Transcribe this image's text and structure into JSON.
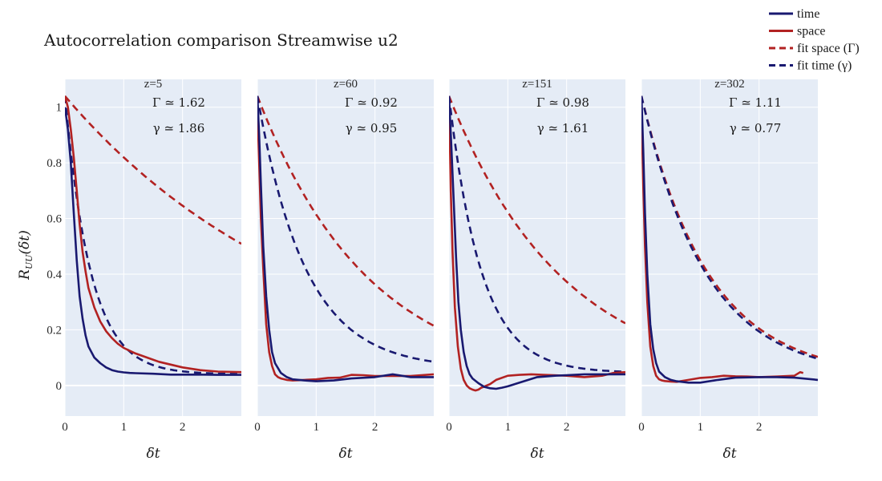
{
  "chart_data": {
    "type": "line",
    "title": "Autocorrelation comparison Streamwise u2",
    "xlabel": "δt",
    "ylabel": "R_{UU}(δt)",
    "xlim": [
      0,
      3
    ],
    "ylim": [
      -0.11,
      1.1
    ],
    "x_ticks": [
      0,
      1,
      2
    ],
    "y_ticks": [
      0,
      0.2,
      0.4,
      0.6,
      0.8,
      1
    ],
    "y_tick_labels": [
      "0",
      "0.2",
      "0.4",
      "0.6",
      "0.8",
      "1"
    ],
    "grid": true,
    "legend_position": "top-right",
    "colors": {
      "time": "#191970",
      "space": "#b22222",
      "plot_bg": "#e5ecf6"
    },
    "legend": [
      {
        "key": "time",
        "label": "time",
        "dash": false
      },
      {
        "key": "space",
        "label": "space",
        "dash": false
      },
      {
        "key": "fit_space",
        "label": "fit space (Γ)",
        "dash": true,
        "color": "space"
      },
      {
        "key": "fit_time",
        "label": "fit time (γ)",
        "dash": true,
        "color": "time"
      }
    ],
    "panels": [
      {
        "subtitle": "z=5",
        "gamma_upper_label": "Γ ≃ 1.62",
        "gamma_lower_label": "γ ≃ 1.86",
        "fit_space": {
          "a": 1.04,
          "tau": 4.2
        },
        "fit_time": {
          "a": 1.04,
          "tau": 0.44,
          "c": 0.04
        },
        "time": {
          "x": [
            0,
            0.05,
            0.1,
            0.15,
            0.2,
            0.25,
            0.3,
            0.35,
            0.4,
            0.5,
            0.6,
            0.7,
            0.8,
            0.9,
            1.0,
            1.1,
            1.2,
            1.5,
            1.8,
            2.0,
            2.3,
            2.6,
            2.8,
            3.0
          ],
          "y": [
            1.0,
            0.92,
            0.8,
            0.62,
            0.45,
            0.32,
            0.24,
            0.18,
            0.14,
            0.1,
            0.08,
            0.065,
            0.055,
            0.05,
            0.047,
            0.045,
            0.044,
            0.042,
            0.039,
            0.039,
            0.039,
            0.038,
            0.038,
            0.038
          ]
        },
        "space": {
          "x": [
            0,
            0.05,
            0.1,
            0.15,
            0.2,
            0.25,
            0.3,
            0.35,
            0.4,
            0.5,
            0.6,
            0.7,
            0.8,
            0.9,
            1.0,
            1.2,
            1.4,
            1.6,
            1.8,
            2.0,
            2.3,
            2.6,
            3.0
          ],
          "y": [
            1.04,
            1.0,
            0.92,
            0.82,
            0.7,
            0.58,
            0.48,
            0.41,
            0.35,
            0.28,
            0.23,
            0.195,
            0.17,
            0.15,
            0.135,
            0.115,
            0.1,
            0.085,
            0.075,
            0.065,
            0.055,
            0.05,
            0.048
          ]
        }
      },
      {
        "subtitle": "z=60",
        "gamma_upper_label": "Γ ≃ 0.92",
        "gamma_lower_label": "γ ≃ 0.95",
        "fit_space": {
          "a": 1.04,
          "tau": 1.9
        },
        "fit_time": {
          "a": 1.04,
          "tau": 0.82,
          "c": 0.06
        },
        "time": {
          "x": [
            0,
            0.03,
            0.06,
            0.1,
            0.15,
            0.2,
            0.25,
            0.3,
            0.4,
            0.5,
            0.6,
            0.8,
            1.0,
            1.3,
            1.6,
            2.0,
            2.3,
            2.6,
            3.0
          ],
          "y": [
            1.04,
            0.9,
            0.72,
            0.5,
            0.32,
            0.2,
            0.12,
            0.08,
            0.045,
            0.03,
            0.022,
            0.018,
            0.015,
            0.018,
            0.025,
            0.03,
            0.04,
            0.03,
            0.03
          ]
        },
        "space": {
          "x": [
            0,
            0.03,
            0.06,
            0.1,
            0.15,
            0.2,
            0.25,
            0.3,
            0.35,
            0.4,
            0.5,
            0.6,
            0.8,
            1.0,
            1.2,
            1.4,
            1.6,
            1.8,
            2.0,
            2.3,
            2.6,
            3.0
          ],
          "y": [
            1.0,
            0.8,
            0.6,
            0.42,
            0.22,
            0.12,
            0.07,
            0.04,
            0.03,
            0.025,
            0.02,
            0.018,
            0.02,
            0.022,
            0.027,
            0.028,
            0.038,
            0.037,
            0.034,
            0.034,
            0.034,
            0.04
          ]
        }
      },
      {
        "subtitle": "z=151",
        "gamma_upper_label": "Γ ≃ 0.98",
        "gamma_lower_label": "γ ≃ 1.61",
        "fit_space": {
          "a": 1.04,
          "tau": 1.95
        },
        "fit_time": {
          "a": 1.04,
          "tau": 0.55,
          "c": 0.045
        },
        "time": {
          "x": [
            0,
            0.04,
            0.08,
            0.12,
            0.16,
            0.2,
            0.25,
            0.3,
            0.35,
            0.4,
            0.5,
            0.6,
            0.7,
            0.8,
            0.9,
            1.0,
            1.2,
            1.5,
            1.8,
            2.0,
            2.3,
            2.6,
            3.0
          ],
          "y": [
            1.04,
            0.86,
            0.66,
            0.46,
            0.3,
            0.2,
            0.12,
            0.07,
            0.04,
            0.025,
            0.008,
            -0.005,
            -0.01,
            -0.012,
            -0.008,
            -0.003,
            0.01,
            0.03,
            0.035,
            0.037,
            0.04,
            0.04,
            0.04
          ]
        },
        "space": {
          "x": [
            0,
            0.03,
            0.06,
            0.1,
            0.15,
            0.2,
            0.25,
            0.3,
            0.35,
            0.4,
            0.45,
            0.5,
            0.55,
            0.6,
            0.7,
            0.8,
            1.0,
            1.2,
            1.4,
            1.6,
            2.0,
            2.3,
            2.6,
            2.8,
            3.0
          ],
          "y": [
            1.04,
            0.7,
            0.48,
            0.28,
            0.14,
            0.06,
            0.02,
            0.0,
            -0.01,
            -0.015,
            -0.018,
            -0.015,
            -0.008,
            -0.004,
            0.005,
            0.02,
            0.035,
            0.038,
            0.04,
            0.038,
            0.035,
            0.03,
            0.035,
            0.045,
            0.048
          ]
        }
      },
      {
        "subtitle": "z=302",
        "gamma_upper_label": "Γ ≃ 1.11",
        "gamma_lower_label": "γ ≃ 0.77",
        "fit_space": {
          "a": 1.04,
          "tau": 1.14,
          "c": 0.03
        },
        "fit_time": {
          "a": 1.04,
          "tau": 1.1,
          "c": 0.03
        },
        "time": {
          "x": [
            0,
            0.03,
            0.06,
            0.1,
            0.15,
            0.2,
            0.25,
            0.3,
            0.4,
            0.5,
            0.6,
            0.8,
            1.0,
            1.3,
            1.6,
            2.0,
            2.3,
            2.6,
            3.0
          ],
          "y": [
            1.04,
            0.85,
            0.62,
            0.4,
            0.22,
            0.13,
            0.08,
            0.05,
            0.03,
            0.02,
            0.015,
            0.01,
            0.01,
            0.02,
            0.028,
            0.03,
            0.03,
            0.028,
            0.02
          ]
        },
        "space": {
          "x": [
            0,
            0.03,
            0.06,
            0.1,
            0.15,
            0.2,
            0.25,
            0.3,
            0.35,
            0.4,
            0.5,
            0.6,
            0.8,
            1.0,
            1.2,
            1.4,
            1.6,
            1.8,
            2.0,
            2.3,
            2.6,
            2.7,
            2.75
          ],
          "y": [
            1.0,
            0.72,
            0.5,
            0.3,
            0.14,
            0.07,
            0.035,
            0.022,
            0.018,
            0.016,
            0.014,
            0.013,
            0.02,
            0.027,
            0.03,
            0.035,
            0.033,
            0.032,
            0.03,
            0.032,
            0.035,
            0.048,
            0.045
          ]
        }
      }
    ]
  }
}
